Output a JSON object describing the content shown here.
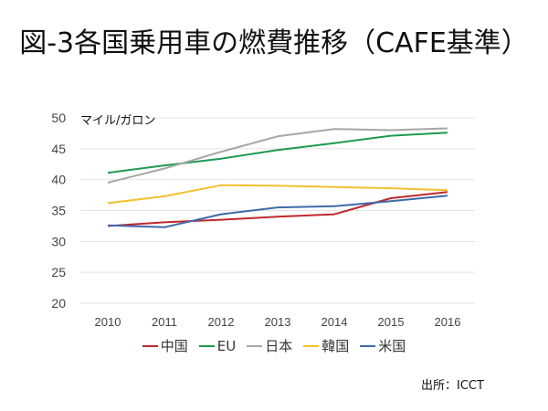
{
  "title": "図-3各国乗用車の燃費推移（CAFE基準）",
  "source": "出所：ICCT",
  "chart_data": {
    "type": "line",
    "title": "図-3各国乗用車の燃費推移（CAFE基準）",
    "unit_label": "マイル/ガロン",
    "xlabel": "",
    "ylabel": "マイル/ガロン",
    "categories": [
      "2010",
      "2011",
      "2012",
      "2013",
      "2014",
      "2015",
      "2016"
    ],
    "ylim": [
      20,
      50
    ],
    "yticks": [
      20,
      25,
      30,
      35,
      40,
      45,
      50
    ],
    "grid": true,
    "legend_position": "bottom",
    "series": [
      {
        "name": "中国",
        "color": "#c0282d",
        "values": [
          32.5,
          33.1,
          33.5,
          34.0,
          34.4,
          37.0,
          38.0
        ]
      },
      {
        "name": "EU",
        "color": "#1e9a52",
        "values": [
          41.1,
          42.3,
          43.4,
          44.8,
          45.9,
          47.1,
          47.6
        ]
      },
      {
        "name": "日本",
        "color": "#a6a6a6",
        "values": [
          39.5,
          41.8,
          44.5,
          47.0,
          48.2,
          48.0,
          48.3
        ]
      },
      {
        "name": "韓国",
        "color": "#f2c12e",
        "values": [
          36.2,
          37.3,
          39.1,
          39.0,
          38.8,
          38.6,
          38.3
        ]
      },
      {
        "name": "米国",
        "color": "#3e6aa8",
        "values": [
          32.6,
          32.3,
          34.4,
          35.5,
          35.7,
          36.5,
          37.4
        ]
      }
    ]
  }
}
